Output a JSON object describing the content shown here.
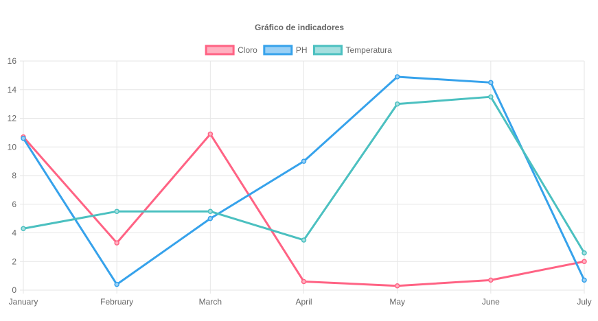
{
  "chart_data": {
    "type": "line",
    "title": "Gráfico de indicadores",
    "categories": [
      "January",
      "February",
      "March",
      "April",
      "May",
      "June",
      "July"
    ],
    "ylim": [
      0,
      16
    ],
    "yticks": [
      "0",
      "2",
      "4",
      "6",
      "8",
      "10",
      "12",
      "14",
      "16"
    ],
    "grid": true,
    "legend_position": "top-center",
    "series": [
      {
        "name": "Cloro",
        "color": "#ff6384",
        "fill": "#ffb1c1",
        "values": [
          10.7,
          3.3,
          10.9,
          0.6,
          0.3,
          0.7,
          2.0
        ]
      },
      {
        "name": "PH",
        "color": "#36a2eb",
        "fill": "#9ad0f5",
        "values": [
          10.6,
          0.4,
          5.0,
          9.0,
          14.9,
          14.5,
          0.7
        ]
      },
      {
        "name": "Temperatura",
        "color": "#4bc0c0",
        "fill": "#a5dfdf",
        "values": [
          4.3,
          5.5,
          5.5,
          3.5,
          13.0,
          13.5,
          2.6
        ]
      }
    ]
  }
}
